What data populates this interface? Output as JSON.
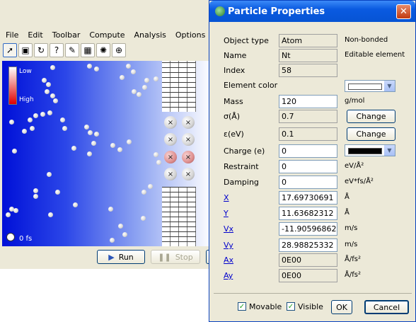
{
  "app": {
    "menu": [
      "File",
      "Edit",
      "Toolbar",
      "Compute",
      "Analysis",
      "Options"
    ],
    "toolbar_icons": [
      "select-arrow-icon",
      "rectangle-select-icon",
      "rotate-icon",
      "question-icon",
      "wand-icon",
      "grid-icon",
      "heat-icon",
      "add-particle-icon"
    ],
    "legend_low": "Low",
    "legend_high": "High",
    "time": "0 fs",
    "run_label": "Run",
    "stop_label": "Stop"
  },
  "dialog": {
    "title": "Particle Properties",
    "close_glyph": "✕",
    "object_type": {
      "label": "Object type",
      "value": "Atom",
      "note": "Non-bonded"
    },
    "name": {
      "label": "Name",
      "value": "Nt",
      "note": "Editable element"
    },
    "index": {
      "label": "Index",
      "value": "58"
    },
    "element_color": {
      "label": "Element color",
      "swatch": "#ffffff"
    },
    "mass": {
      "label": "Mass",
      "value": "120",
      "unit": "g/mol"
    },
    "sigma": {
      "label": "σ(Å)",
      "value": "0.7",
      "button": "Change"
    },
    "epsilon": {
      "label": "ε(eV)",
      "value": "0.1",
      "button": "Change"
    },
    "charge": {
      "label": "Charge (e)",
      "value": "0",
      "swatch": "#000000"
    },
    "restraint": {
      "label": "Restraint",
      "value": "0",
      "unit": "eV/Å²"
    },
    "damping": {
      "label": "Damping",
      "value": "0",
      "unit": "eV*fs/Å²"
    },
    "x": {
      "label": "X",
      "value": "17.69730691",
      "unit": "Å"
    },
    "y": {
      "label": "Y",
      "value": "11.63682312",
      "unit": "Å"
    },
    "vx": {
      "label": "Vx",
      "value": "-11.90596862",
      "unit": "m/s"
    },
    "vy": {
      "label": "Vy",
      "value": "28.98825332",
      "unit": "m/s"
    },
    "ax": {
      "label": "Ax",
      "value": "0E00",
      "unit": "Å/fs²"
    },
    "ay": {
      "label": "Ay",
      "value": "0E00",
      "unit": "Å/fs²"
    },
    "movable": {
      "label": "Movable",
      "checked": true
    },
    "visible": {
      "label": "Visible",
      "checked": true
    },
    "ok": "OK",
    "cancel": "Cancel"
  }
}
